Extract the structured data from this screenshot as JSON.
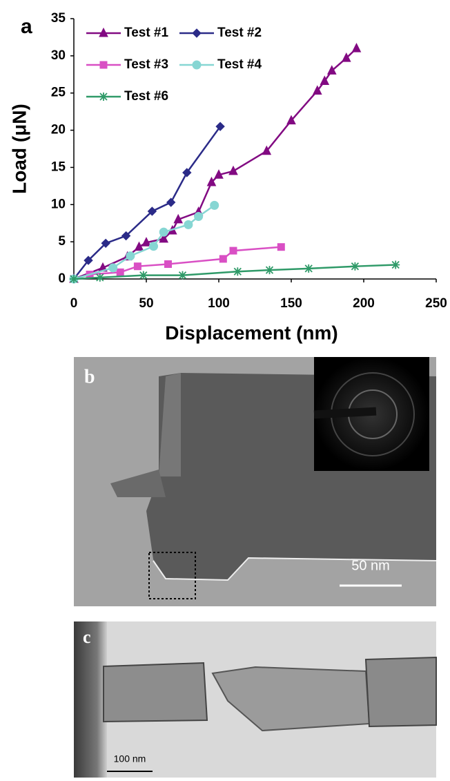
{
  "chart_data": {
    "type": "line",
    "panel_label": "a",
    "xlabel": "Displacement (nm)",
    "ylabel": "Load (μN)",
    "xlim": [
      0,
      250
    ],
    "xticks": [
      0,
      50,
      100,
      150,
      200,
      250
    ],
    "ylim": [
      0,
      35
    ],
    "yticks": [
      0,
      5,
      10,
      15,
      20,
      25,
      30,
      35
    ],
    "legend": "upper left",
    "series": [
      {
        "name": "Test #1",
        "color": "#820a82",
        "marker": "triangle",
        "x": [
          0,
          20,
          37,
          45,
          50,
          62,
          68,
          72,
          86,
          95,
          100,
          110,
          133,
          150,
          168,
          173,
          178,
          188,
          195
        ],
        "values": [
          0,
          1.5,
          3,
          4.3,
          4.9,
          5.4,
          6.5,
          8,
          9,
          13,
          14,
          14.5,
          17.2,
          21.3,
          25.3,
          26.6,
          28,
          29.7,
          31
        ]
      },
      {
        "name": "Test #2",
        "color": "#2b2b88",
        "marker": "diamond",
        "x": [
          0,
          10,
          22,
          36,
          54,
          67,
          78,
          101
        ],
        "values": [
          0,
          2.5,
          4.8,
          5.8,
          9.1,
          10.3,
          14.3,
          20.5
        ]
      },
      {
        "name": "Test #3",
        "color": "#d94fc4",
        "marker": "square",
        "x": [
          0,
          11,
          32,
          44,
          65,
          103,
          110,
          143
        ],
        "values": [
          0,
          0.6,
          0.9,
          1.7,
          2,
          2.7,
          3.8,
          4.3
        ]
      },
      {
        "name": "Test #4",
        "color": "#86d6d3",
        "marker": "circle",
        "x": [
          0,
          27,
          39,
          55,
          62,
          79,
          86,
          97
        ],
        "values": [
          0,
          1.5,
          3.1,
          4.4,
          6.3,
          7.3,
          8.4,
          9.9
        ]
      },
      {
        "name": "Test #6",
        "color": "#2f9a68",
        "marker": "star",
        "x": [
          0,
          18,
          48,
          75,
          113,
          135,
          162,
          194,
          222
        ],
        "values": [
          0,
          0.2,
          0.5,
          0.5,
          1,
          1.2,
          1.4,
          1.7,
          1.9
        ]
      }
    ]
  },
  "panels": {
    "b": {
      "label": "b",
      "scale_bar": "50 nm"
    },
    "c": {
      "label": "c",
      "scale_bar": "100 nm"
    }
  }
}
